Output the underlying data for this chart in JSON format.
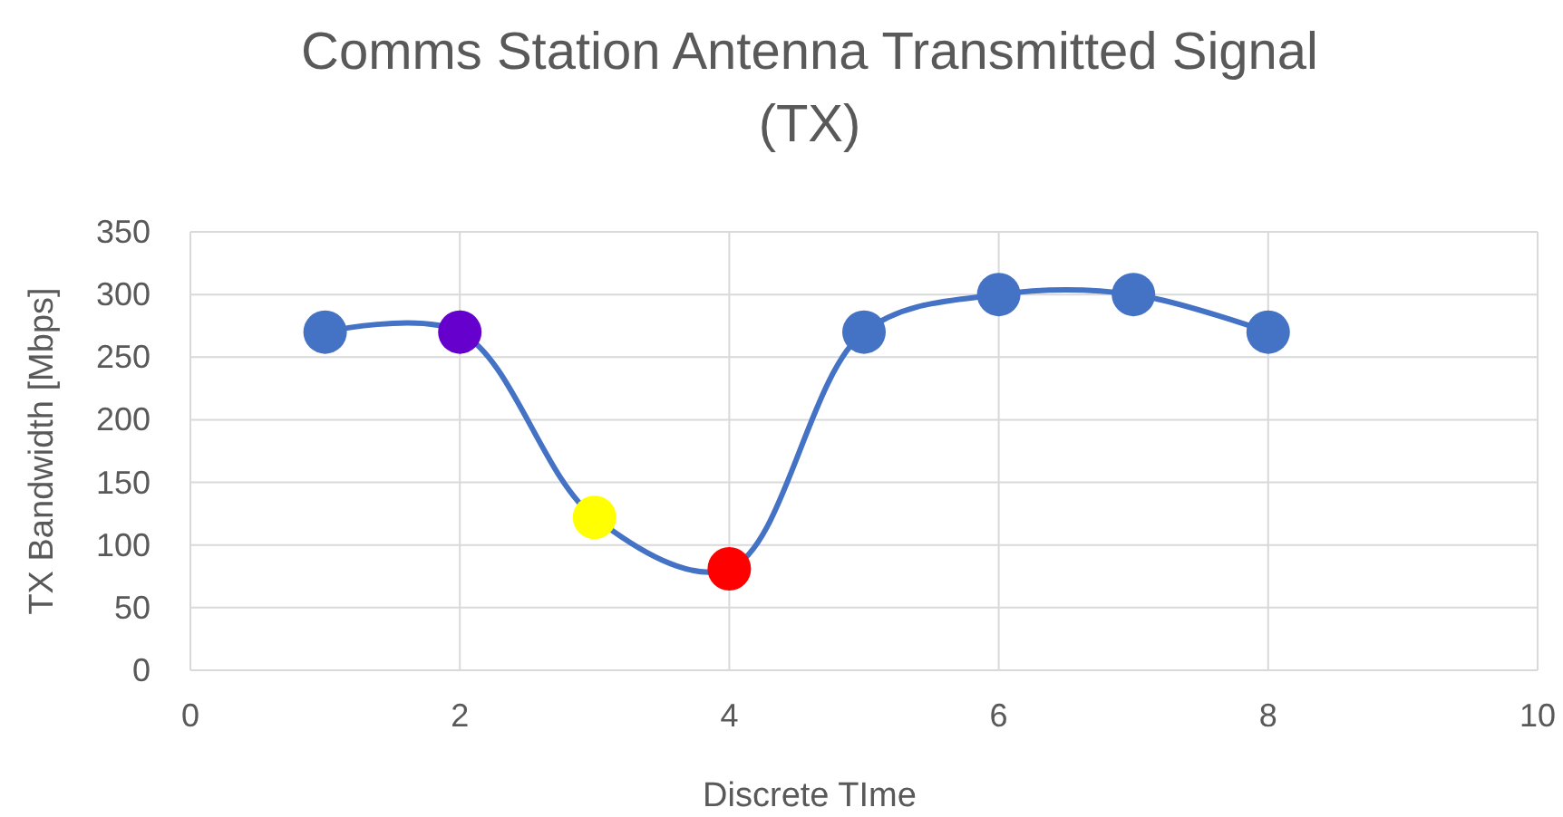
{
  "chart_data": {
    "type": "line",
    "title": "Comms Station Antenna Transmitted Signal (TX)",
    "xlabel": "Discrete TIme",
    "ylabel": "TX Bandwidth [Mbps]",
    "x": [
      1,
      2,
      3,
      4,
      5,
      6,
      7,
      8
    ],
    "series": [
      {
        "color": "#4472c4",
        "colors": [
          "#4472c4",
          "#6600cc",
          "#ffff00",
          "#ff0000",
          "#4472c4",
          "#4472c4",
          "#4472c4",
          "#4472c4"
        ],
        "values": [
          270,
          270,
          122,
          81,
          270,
          300,
          300,
          270
        ]
      }
    ],
    "xlim": [
      0,
      10
    ],
    "xticks": [
      0,
      2,
      4,
      6,
      8,
      10
    ],
    "ylim": [
      0,
      350
    ],
    "yticks": [
      0,
      50,
      100,
      150,
      200,
      250,
      300,
      350
    ],
    "grid": true,
    "marker": "circle",
    "line_style": "solid"
  }
}
